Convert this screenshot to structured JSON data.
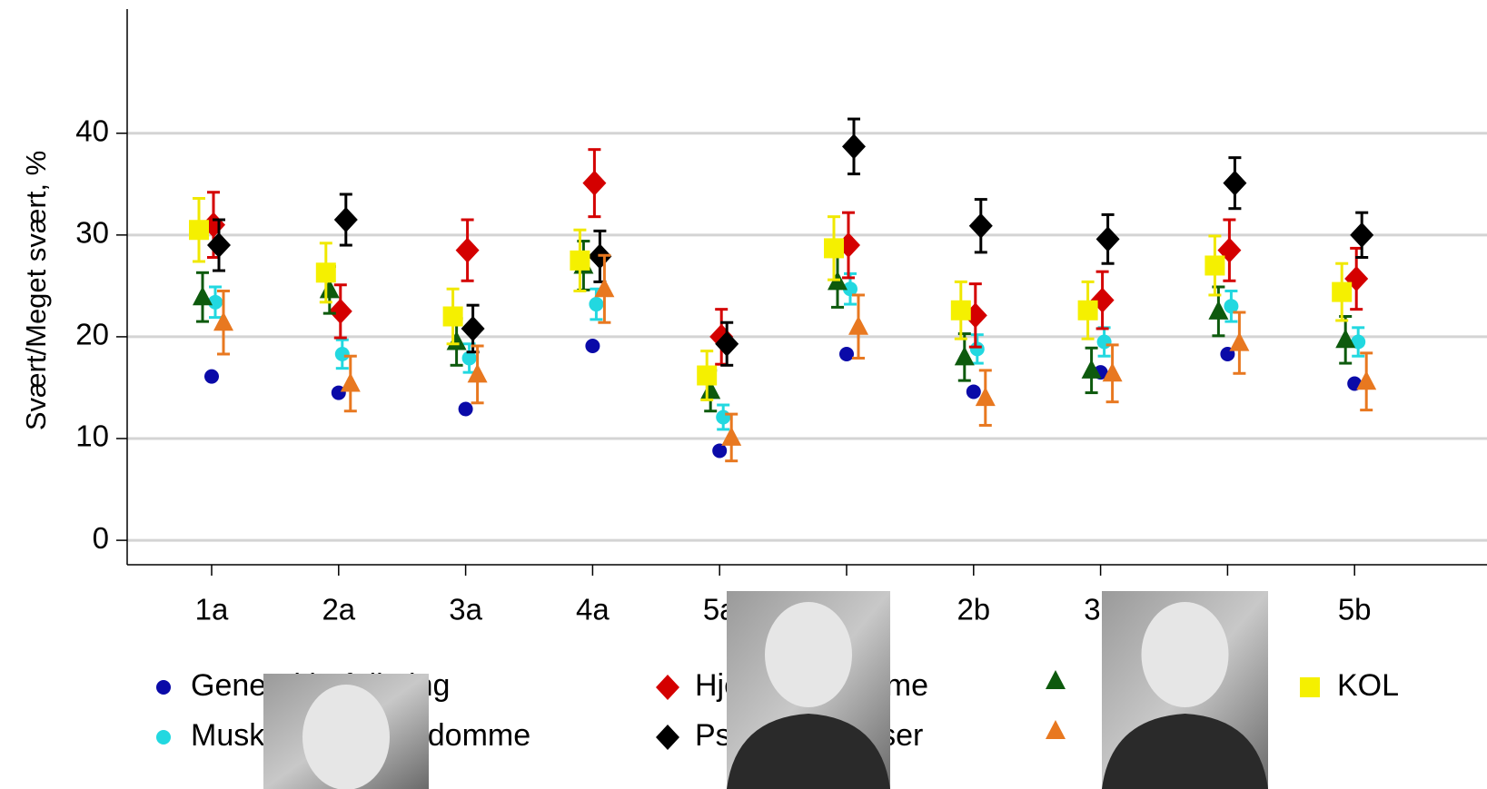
{
  "chart_data": {
    "type": "scatter",
    "y_label": "Svært/Meget svært, %",
    "categories": [
      "1a",
      "2a",
      "3a",
      "4a",
      "5a",
      null,
      "2b",
      "3b",
      null,
      "5b"
    ],
    "ylim": [
      -2.4,
      52.2
    ],
    "yticks": [
      0,
      10,
      20,
      30,
      40
    ],
    "grid": true,
    "series": [
      {
        "name": "Generel befolkning",
        "color": "#0a0aa8",
        "marker": "circle",
        "values": [
          16.1,
          14.5,
          12.9,
          19.1,
          8.8,
          18.3,
          14.6,
          16.5,
          18.3,
          15.4
        ]
      },
      {
        "name": "Muskel-skeletsygdomme",
        "color": "#22d8e0",
        "marker": "circle",
        "values": [
          23.4,
          18.3,
          17.9,
          23.2,
          12.1,
          24.7,
          18.8,
          19.5,
          23.0,
          19.5
        ],
        "errors": [
          1.5,
          1.4,
          1.4,
          1.5,
          1.2,
          1.5,
          1.4,
          1.4,
          1.5,
          1.4
        ]
      },
      {
        "name": "Hjertesygdomme",
        "color": "#d40000",
        "marker": "diamond",
        "values": [
          31.0,
          22.5,
          28.5,
          35.1,
          20.0,
          29.0,
          22.1,
          23.6,
          28.5,
          25.7
        ],
        "errors": [
          3.2,
          2.6,
          3.0,
          3.3,
          2.7,
          3.2,
          3.1,
          2.8,
          3.0,
          3.0
        ]
      },
      {
        "name": "Psykiske lidelser",
        "color": "#000000",
        "marker": "diamond",
        "values": [
          29.0,
          31.5,
          20.8,
          27.9,
          19.3,
          38.7,
          30.9,
          29.6,
          35.1,
          30.0
        ],
        "errors": [
          2.5,
          2.5,
          2.3,
          2.5,
          2.1,
          2.7,
          2.6,
          2.4,
          2.5,
          2.2
        ]
      },
      {
        "name": null,
        "color": "#0d5a0d",
        "marker": "triangle",
        "values": [
          23.9,
          24.6,
          19.5,
          27.0,
          14.7,
          25.4,
          18.0,
          16.7,
          22.5,
          19.7
        ],
        "errors": [
          2.4,
          2.3,
          2.3,
          2.4,
          2.0,
          2.5,
          2.3,
          2.2,
          2.4,
          2.3
        ]
      },
      {
        "name": null,
        "color": "#e87820",
        "marker": "triangle",
        "values": [
          21.4,
          15.4,
          16.3,
          24.7,
          10.1,
          21.0,
          14.0,
          16.4,
          19.4,
          15.6
        ],
        "errors": [
          3.1,
          2.7,
          2.8,
          3.3,
          2.3,
          3.1,
          2.7,
          2.8,
          3.0,
          2.8
        ]
      },
      {
        "name": "KOL",
        "color": "#f5f000",
        "marker": "square",
        "values": [
          30.5,
          26.3,
          22.0,
          27.5,
          16.2,
          28.7,
          22.6,
          22.6,
          27.0,
          24.4
        ],
        "errors": [
          3.1,
          2.9,
          2.7,
          3.0,
          2.4,
          3.1,
          2.8,
          2.8,
          2.9,
          2.8
        ]
      }
    ]
  }
}
